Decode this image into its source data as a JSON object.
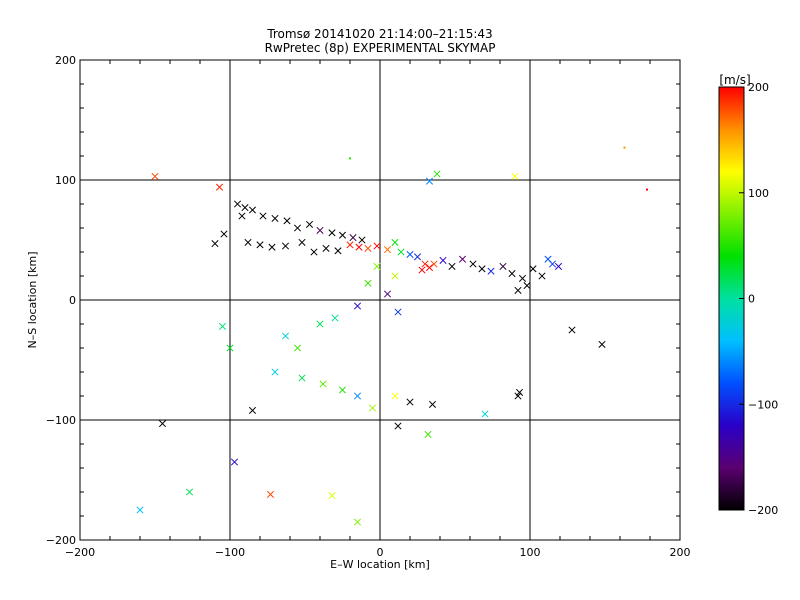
{
  "chart_data": {
    "type": "scatter",
    "title": "Tromsø 20141020 21:14:00–21:15:43",
    "subtitle": "RwPretec (8p) EXPERIMENTAL SKYMAP",
    "xlabel": "E–W location [km]",
    "ylabel": "N–S location [km]",
    "xlim": [
      -200,
      200
    ],
    "ylim": [
      -200,
      200
    ],
    "xticks": [
      -200,
      -100,
      0,
      100,
      200
    ],
    "yticks": [
      -200,
      -100,
      0,
      100,
      200
    ],
    "xtick_labels": [
      "−200",
      "−100",
      "0",
      "100",
      "200"
    ],
    "ytick_labels": [
      "−200",
      "−100",
      "0",
      "100",
      "200"
    ],
    "grid": true,
    "color_scale": {
      "label": "[m/s]",
      "min": -200,
      "max": 200,
      "ticks": [
        200,
        100,
        0,
        -100,
        -200
      ],
      "tick_labels": [
        "200",
        "100",
        "0",
        "−100",
        "−200"
      ],
      "colors": [
        "#000000",
        "#5a0070",
        "#2a00c8",
        "#0050ff",
        "#00c0ff",
        "#00e0a0",
        "#00e000",
        "#80f000",
        "#ffff00",
        "#ff9000",
        "#ff0000"
      ]
    },
    "marker_types": [
      "dot",
      "x"
    ],
    "points": [
      [
        -150,
        103,
        180,
        "x"
      ],
      [
        -107,
        94,
        190,
        "x"
      ],
      [
        163,
        127,
        160,
        "dot"
      ],
      [
        90,
        103,
        120,
        "x"
      ],
      [
        38,
        105,
        50,
        "x"
      ],
      [
        33,
        99,
        -60,
        "x"
      ],
      [
        -20,
        118,
        50,
        "dot"
      ],
      [
        178,
        92,
        200,
        "dot"
      ],
      [
        -95,
        80,
        -200,
        "x"
      ],
      [
        -90,
        77,
        -200,
        "x"
      ],
      [
        -85,
        75,
        -200,
        "x"
      ],
      [
        -92,
        70,
        -200,
        "x"
      ],
      [
        -78,
        70,
        -200,
        "x"
      ],
      [
        -70,
        68,
        -200,
        "x"
      ],
      [
        -62,
        66,
        -200,
        "x"
      ],
      [
        -55,
        60,
        -200,
        "x"
      ],
      [
        -47,
        63,
        -200,
        "x"
      ],
      [
        -40,
        58,
        -170,
        "x"
      ],
      [
        -32,
        56,
        -200,
        "x"
      ],
      [
        -25,
        54,
        -200,
        "x"
      ],
      [
        -18,
        52,
        -180,
        "x"
      ],
      [
        -12,
        50,
        -200,
        "x"
      ],
      [
        -104,
        55,
        -200,
        "x"
      ],
      [
        -110,
        47,
        -200,
        "x"
      ],
      [
        -88,
        48,
        -200,
        "x"
      ],
      [
        -80,
        46,
        -200,
        "x"
      ],
      [
        -72,
        44,
        -200,
        "x"
      ],
      [
        -63,
        45,
        -200,
        "x"
      ],
      [
        -52,
        48,
        -200,
        "x"
      ],
      [
        -44,
        40,
        -200,
        "x"
      ],
      [
        -36,
        43,
        -200,
        "x"
      ],
      [
        -28,
        41,
        -200,
        "x"
      ],
      [
        -20,
        46,
        190,
        "x"
      ],
      [
        -14,
        44,
        200,
        "x"
      ],
      [
        -8,
        43,
        180,
        "x"
      ],
      [
        -2,
        45,
        200,
        "x"
      ],
      [
        5,
        42,
        170,
        "x"
      ],
      [
        10,
        48,
        40,
        "x"
      ],
      [
        14,
        40,
        30,
        "x"
      ],
      [
        20,
        38,
        -80,
        "x"
      ],
      [
        25,
        36,
        -100,
        "x"
      ],
      [
        30,
        30,
        190,
        "x"
      ],
      [
        33,
        27,
        200,
        "x"
      ],
      [
        36,
        30,
        180,
        "x"
      ],
      [
        28,
        25,
        200,
        "x"
      ],
      [
        42,
        33,
        -120,
        "x"
      ],
      [
        48,
        28,
        -200,
        "x"
      ],
      [
        55,
        34,
        -160,
        "x"
      ],
      [
        62,
        30,
        -200,
        "x"
      ],
      [
        68,
        26,
        -200,
        "x"
      ],
      [
        74,
        24,
        -100,
        "x"
      ],
      [
        82,
        28,
        -180,
        "x"
      ],
      [
        88,
        22,
        -200,
        "x"
      ],
      [
        95,
        18,
        -200,
        "x"
      ],
      [
        102,
        26,
        -200,
        "x"
      ],
      [
        108,
        20,
        -200,
        "x"
      ],
      [
        115,
        30,
        -90,
        "x"
      ],
      [
        119,
        28,
        -120,
        "x"
      ],
      [
        112,
        34,
        -80,
        "x"
      ],
      [
        98,
        12,
        -200,
        "x"
      ],
      [
        92,
        8,
        -200,
        "x"
      ],
      [
        -2,
        28,
        80,
        "x"
      ],
      [
        10,
        20,
        100,
        "x"
      ],
      [
        -8,
        14,
        60,
        "x"
      ],
      [
        5,
        5,
        -150,
        "x"
      ],
      [
        -15,
        -5,
        -120,
        "x"
      ],
      [
        12,
        -10,
        -90,
        "x"
      ],
      [
        -30,
        -15,
        0,
        "x"
      ],
      [
        -40,
        -20,
        20,
        "x"
      ],
      [
        -55,
        -40,
        60,
        "x"
      ],
      [
        -63,
        -30,
        -20,
        "x"
      ],
      [
        -100,
        -40,
        30,
        "x"
      ],
      [
        -105,
        -22,
        10,
        "x"
      ],
      [
        -70,
        -60,
        -30,
        "x"
      ],
      [
        -52,
        -65,
        20,
        "x"
      ],
      [
        -38,
        -70,
        70,
        "x"
      ],
      [
        -25,
        -75,
        50,
        "x"
      ],
      [
        -15,
        -80,
        -60,
        "x"
      ],
      [
        -5,
        -90,
        90,
        "x"
      ],
      [
        10,
        -80,
        120,
        "x"
      ],
      [
        20,
        -85,
        -200,
        "x"
      ],
      [
        35,
        -87,
        -200,
        "x"
      ],
      [
        12,
        -105,
        -200,
        "x"
      ],
      [
        32,
        -112,
        60,
        "x"
      ],
      [
        70,
        -95,
        -20,
        "x"
      ],
      [
        93,
        -77,
        -200,
        "x"
      ],
      [
        92,
        -80,
        -200,
        "x"
      ],
      [
        128,
        -25,
        -200,
        "x"
      ],
      [
        148,
        -37,
        -200,
        "x"
      ],
      [
        -85,
        -92,
        -200,
        "x"
      ],
      [
        -145,
        -103,
        -200,
        "x"
      ],
      [
        -160,
        -175,
        -40,
        "x"
      ],
      [
        -127,
        -160,
        20,
        "x"
      ],
      [
        -97,
        -135,
        -120,
        "x"
      ],
      [
        -73,
        -162,
        180,
        "x"
      ],
      [
        -32,
        -163,
        110,
        "x"
      ],
      [
        -15,
        -185,
        80,
        "x"
      ]
    ]
  }
}
